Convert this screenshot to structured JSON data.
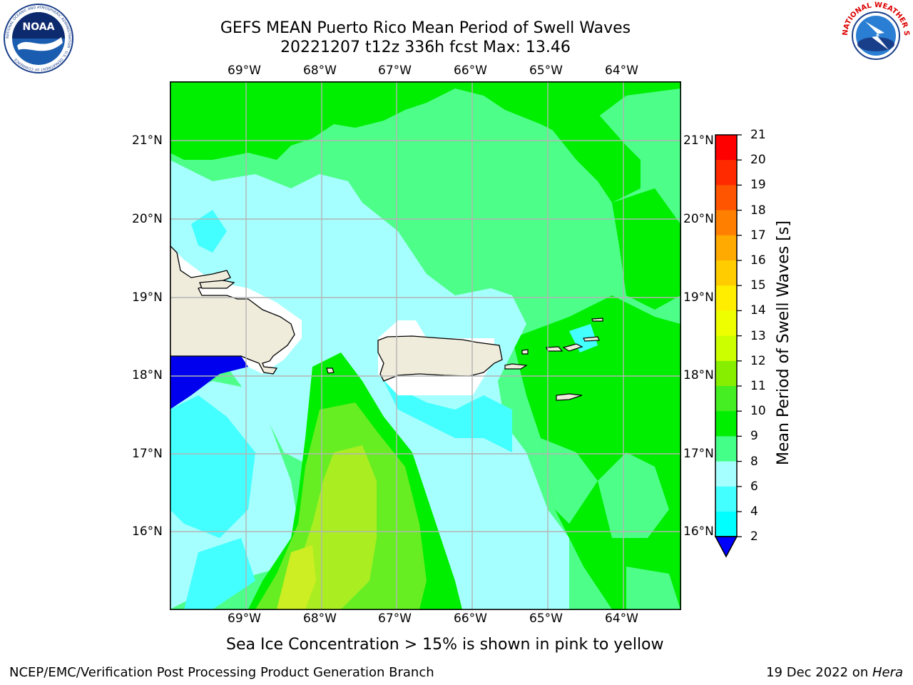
{
  "header": {
    "title_line1": "GEFS MEAN Puerto Rico Mean Period of Swell Waves",
    "title_line2": "20221207 t12z 336h fcst   Max: 13.46"
  },
  "map": {
    "lon_labels": [
      "69°W",
      "68°W",
      "67°W",
      "66°W",
      "65°W",
      "64°W"
    ],
    "lat_labels": [
      "21°N",
      "20°N",
      "19°N",
      "18°N",
      "17°N",
      "16°N"
    ],
    "ocean_fill_colors": {
      "c6_8": "#44ffff",
      "c8_9": "#a6ffff",
      "c9_10": "#4dff88",
      "c10_11": "#00ee00",
      "c11_12": "#66ee22",
      "c12_13": "#aaee22",
      "c13_14": "#ccee22",
      "low": "#0000ee",
      "land": "#efecdc"
    }
  },
  "colorbar": {
    "title": "Mean Period of Swell Waves [s]",
    "ticks": [
      "21",
      "20",
      "19",
      "18",
      "17",
      "16",
      "15",
      "14",
      "13",
      "12",
      "11",
      "10",
      "9",
      "8",
      "6",
      "4",
      "2"
    ],
    "colors": [
      "#ff0000",
      "#ff2a00",
      "#ff5500",
      "#ff8000",
      "#ffaa00",
      "#ffcc00",
      "#ffee00",
      "#eeff00",
      "#ccff00",
      "#88ee00",
      "#44ee22",
      "#00ee00",
      "#44ff88",
      "#a6ffff",
      "#44ffff",
      "#00ffff",
      "#0080ff",
      "#0000ff"
    ]
  },
  "logos": {
    "left": "NOAA",
    "left_ring": "NATIONAL OCEANIC AND ATMOSPHERIC ADMINISTRATION · U.S. DEPARTMENT OF COMMERCE",
    "right_ring": "NATIONAL WEATHER SERVICE"
  },
  "notes": {
    "sea_ice": "Sea Ice Concentration > 15% is shown in pink to yellow"
  },
  "footer": {
    "left": "NCEP/EMC/Verification Post Processing Product Generation Branch",
    "right_prefix": "19 Dec 2022 on ",
    "right_machine": "Hera"
  }
}
